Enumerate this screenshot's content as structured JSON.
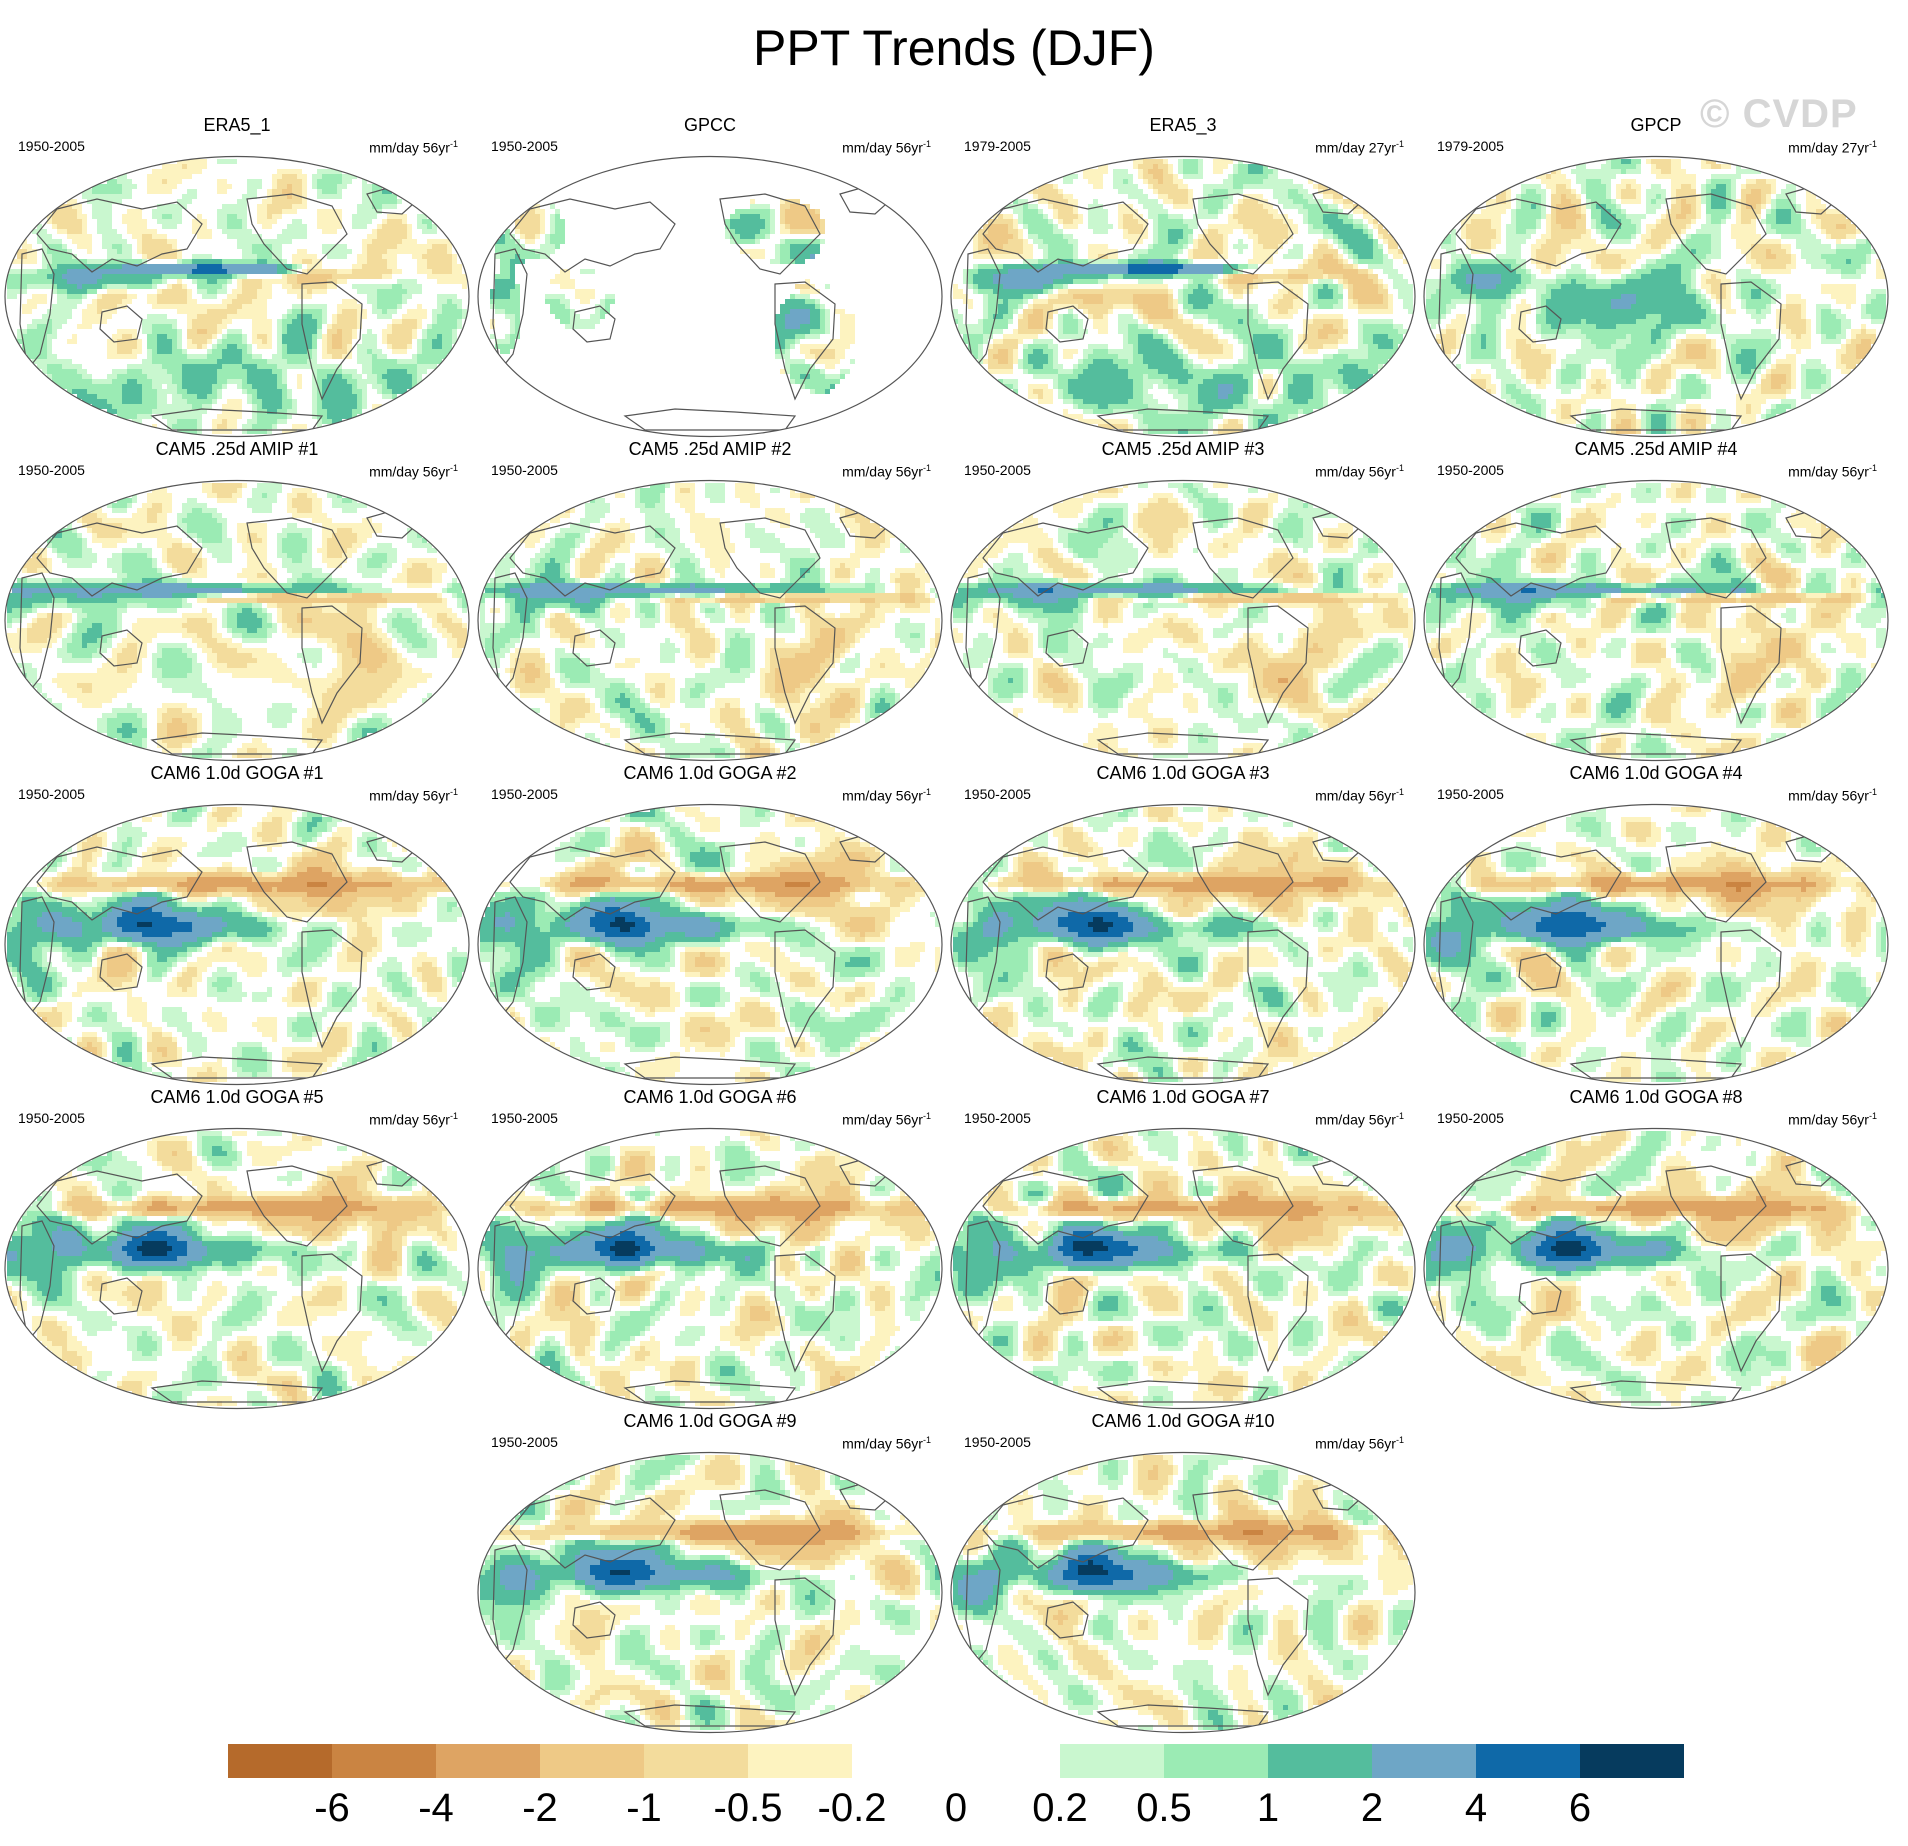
{
  "chart_data": {
    "type": "heatmap",
    "title": "PPT Trends (DJF)",
    "watermark": "© CVDP",
    "projection": "Robinson (Pacific-centered)",
    "colorbar": {
      "levels": [
        "-6",
        "-4",
        "-2",
        "-1",
        "-0.5",
        "-0.2",
        "0",
        "0.2",
        "0.5",
        "1",
        "2",
        "4",
        "6"
      ],
      "colors": [
        "#b56a2b",
        "#ca8442",
        "#dea463",
        "#eec986",
        "#f3dc9c",
        "#fdf3c0",
        "#ffffff",
        "#ffffff",
        "#c9f7cf",
        "#9bebb4",
        "#54bd9d",
        "#6ea6c6",
        "#0f69a8",
        "#063b5e"
      ]
    },
    "panels": [
      {
        "title": "ERA5_1",
        "period": "1950-2005",
        "units_base": "mm/day 56yr",
        "units_exp": "-1",
        "pattern": "era5_1"
      },
      {
        "title": "GPCC",
        "period": "1950-2005",
        "units_base": "mm/day 56yr",
        "units_exp": "-1",
        "pattern": "gpcc"
      },
      {
        "title": "ERA5_3",
        "period": "1979-2005",
        "units_base": "mm/day 27yr",
        "units_exp": "-1",
        "pattern": "era5_3"
      },
      {
        "title": "GPCP",
        "period": "1979-2005",
        "units_base": "mm/day 27yr",
        "units_exp": "-1",
        "pattern": "gpcp"
      },
      {
        "title": "CAM5 .25d AMIP #1",
        "period": "1950-2005",
        "units_base": "mm/day 56yr",
        "units_exp": "-1",
        "pattern": "amip"
      },
      {
        "title": "CAM5 .25d AMIP #2",
        "period": "1950-2005",
        "units_base": "mm/day 56yr",
        "units_exp": "-1",
        "pattern": "amip"
      },
      {
        "title": "CAM5 .25d AMIP #3",
        "period": "1950-2005",
        "units_base": "mm/day 56yr",
        "units_exp": "-1",
        "pattern": "amip"
      },
      {
        "title": "CAM5 .25d AMIP #4",
        "period": "1950-2005",
        "units_base": "mm/day 56yr",
        "units_exp": "-1",
        "pattern": "amip"
      },
      {
        "title": "CAM6 1.0d GOGA #1",
        "period": "1950-2005",
        "units_base": "mm/day 56yr",
        "units_exp": "-1",
        "pattern": "goga"
      },
      {
        "title": "CAM6 1.0d GOGA #2",
        "period": "1950-2005",
        "units_base": "mm/day 56yr",
        "units_exp": "-1",
        "pattern": "goga"
      },
      {
        "title": "CAM6 1.0d GOGA #3",
        "period": "1950-2005",
        "units_base": "mm/day 56yr",
        "units_exp": "-1",
        "pattern": "goga"
      },
      {
        "title": "CAM6 1.0d GOGA #4",
        "period": "1950-2005",
        "units_base": "mm/day 56yr",
        "units_exp": "-1",
        "pattern": "goga"
      },
      {
        "title": "CAM6 1.0d GOGA #5",
        "period": "1950-2005",
        "units_base": "mm/day 56yr",
        "units_exp": "-1",
        "pattern": "goga"
      },
      {
        "title": "CAM6 1.0d GOGA #6",
        "period": "1950-2005",
        "units_base": "mm/day 56yr",
        "units_exp": "-1",
        "pattern": "goga"
      },
      {
        "title": "CAM6 1.0d GOGA #7",
        "period": "1950-2005",
        "units_base": "mm/day 56yr",
        "units_exp": "-1",
        "pattern": "goga"
      },
      {
        "title": "CAM6 1.0d GOGA #8",
        "period": "1950-2005",
        "units_base": "mm/day 56yr",
        "units_exp": "-1",
        "pattern": "goga"
      },
      {
        "title": "CAM6 1.0d GOGA #9",
        "period": "1950-2005",
        "units_base": "mm/day 56yr",
        "units_exp": "-1",
        "pattern": "goga"
      },
      {
        "title": "CAM6 1.0d GOGA #10",
        "period": "1950-2005",
        "units_base": "mm/day 56yr",
        "units_exp": "-1",
        "pattern": "goga"
      }
    ]
  }
}
